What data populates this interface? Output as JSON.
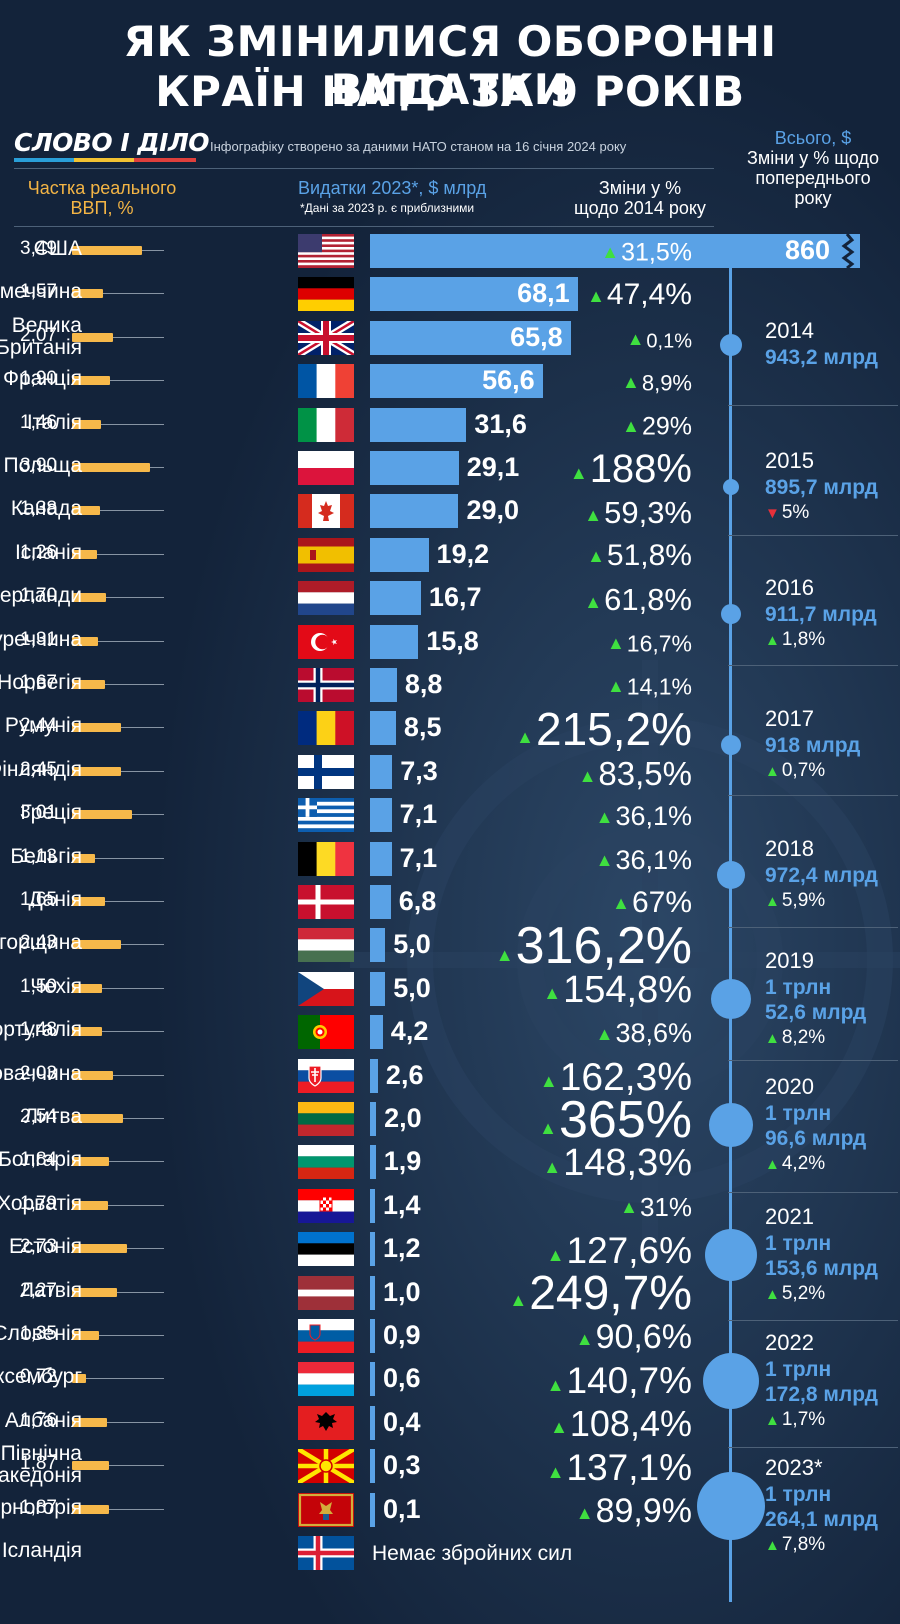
{
  "title_line1": "ЯК ЗМІНИЛИСЯ ОБОРОННІ ВИДАТКИ",
  "title_line2": "КРАЇН НАТО ЗА 9 РОКІВ",
  "logo": "СЛОВО І ДІЛО",
  "source": "Інфографіку створено за даними НАТО станом на 16 січня 2024 року",
  "headers": {
    "gdp_line1": "Частка реального",
    "gdp_line2": "ВВП, %",
    "spend": "Видатки 2023*, $ млрд",
    "spend_note": "*Дані за 2023 р. є приблизними",
    "change_line1": "Зміни у %",
    "change_line2": "щодо 2014 року",
    "total": "Всього, $",
    "total_change_line1": "Зміни у % щодо",
    "total_change_line2": "попереднього",
    "total_change_line3": "року"
  },
  "colors": {
    "accent_blue": "#5aa2e6",
    "gdp_bar": "#f6b84a",
    "up_arrow": "#3fe040",
    "down_arrow": "#e8303a",
    "background": "#13233a"
  },
  "chart_data": {
    "type": "bar",
    "title": "ЯК ЗМІНИЛИСЯ ОБОРОННІ ВИДАТКИ КРАЇН НАТО ЗА 9 РОКІВ",
    "categories": [
      "США",
      "Німеччина",
      "Велика Британія",
      "Франція",
      "Італія",
      "Польща",
      "Канада",
      "Іспанія",
      "Нідерланди",
      "Туреччина",
      "Норвегія",
      "Румунія",
      "Фінляндія",
      "Греція",
      "Бельгія",
      "Данія",
      "Угорщина",
      "Чехія",
      "Португалія",
      "Словаччина",
      "Литва",
      "Болгарія",
      "Хорватія",
      "Естонія",
      "Латвія",
      "Словенія",
      "Люксембург",
      "Албанія",
      "Північна Македонія",
      "Чорногорія",
      "Ісландія"
    ],
    "rows": [
      {
        "country": "США",
        "flag": "us-flag",
        "gdp": "3,49",
        "gdp_val": 3.49,
        "spend": "860",
        "spend_val": 860,
        "change": "31,5%",
        "size": 25,
        "up": true
      },
      {
        "country": "Німеччина",
        "flag": "germany-flag",
        "gdp": "1,57",
        "gdp_val": 1.57,
        "spend": "68,1",
        "spend_val": 68.1,
        "change": "47,4%",
        "size": 30,
        "up": true
      },
      {
        "country": "Велика Британія",
        "flag": "uk-flag",
        "gdp": "2,07",
        "gdp_val": 2.07,
        "spend": "65,8",
        "spend_val": 65.8,
        "change": "0,1%",
        "size": 20,
        "up": true
      },
      {
        "country": "Франція",
        "flag": "france-flag",
        "gdp": "1,90",
        "gdp_val": 1.9,
        "spend": "56,6",
        "spend_val": 56.6,
        "change": "8,9%",
        "size": 22,
        "up": true
      },
      {
        "country": "Італія",
        "flag": "italy-flag",
        "gdp": "1,46",
        "gdp_val": 1.46,
        "spend": "31,6",
        "spend_val": 31.6,
        "change": "29%",
        "size": 25,
        "up": true
      },
      {
        "country": "Польща",
        "flag": "poland-flag",
        "gdp": "3,90",
        "gdp_val": 3.9,
        "spend": "29,1",
        "spend_val": 29.1,
        "change": "188%",
        "size": 40,
        "up": true
      },
      {
        "country": "Канада",
        "flag": "canada-flag",
        "gdp": "1,38",
        "gdp_val": 1.38,
        "spend": "29,0",
        "spend_val": 29.0,
        "change": "59,3%",
        "size": 31,
        "up": true
      },
      {
        "country": "Іспанія",
        "flag": "spain-flag",
        "gdp": "1,26",
        "gdp_val": 1.26,
        "spend": "19,2",
        "spend_val": 19.2,
        "change": "51,8%",
        "size": 30,
        "up": true
      },
      {
        "country": "Нідерланди",
        "flag": "netherlands-flag",
        "gdp": "1,70",
        "gdp_val": 1.7,
        "spend": "16,7",
        "spend_val": 16.7,
        "change": "61,8%",
        "size": 31,
        "up": true
      },
      {
        "country": "Туреччина",
        "flag": "turkey-flag",
        "gdp": "1,31",
        "gdp_val": 1.31,
        "spend": "15,8",
        "spend_val": 15.8,
        "change": "16,7%",
        "size": 23,
        "up": true
      },
      {
        "country": "Норвегія",
        "flag": "norway-flag",
        "gdp": "1,67",
        "gdp_val": 1.67,
        "spend": "8,8",
        "spend_val": 8.8,
        "change": "14,1%",
        "size": 23,
        "up": true
      },
      {
        "country": "Румунія",
        "flag": "romania-flag",
        "gdp": "2,44",
        "gdp_val": 2.44,
        "spend": "8,5",
        "spend_val": 8.5,
        "change": "215,2%",
        "size": 46,
        "up": true
      },
      {
        "country": "Фінляндія",
        "flag": "finland-flag",
        "gdp": "2,45",
        "gdp_val": 2.45,
        "spend": "7,3",
        "spend_val": 7.3,
        "change": "83,5%",
        "size": 33,
        "up": true
      },
      {
        "country": "Греція",
        "flag": "greece-flag",
        "gdp": "3,01",
        "gdp_val": 3.01,
        "spend": "7,1",
        "spend_val": 7.1,
        "change": "36,1%",
        "size": 27,
        "up": true
      },
      {
        "country": "Бельгія",
        "flag": "belgium-flag",
        "gdp": "1,13",
        "gdp_val": 1.13,
        "spend": "7,1",
        "spend_val": 7.1,
        "change": "36,1%",
        "size": 27,
        "up": true
      },
      {
        "country": "Данія",
        "flag": "denmark-flag",
        "gdp": "1,65",
        "gdp_val": 1.65,
        "spend": "6,8",
        "spend_val": 6.8,
        "change": "67%",
        "size": 30,
        "up": true
      },
      {
        "country": "Угорщина",
        "flag": "hungary-flag",
        "gdp": "2,43",
        "gdp_val": 2.43,
        "spend": "5,0",
        "spend_val": 5.0,
        "change": "316,2%",
        "size": 52,
        "up": true
      },
      {
        "country": "Чехія",
        "flag": "czechia-flag",
        "gdp": "1,50",
        "gdp_val": 1.5,
        "spend": "5,0",
        "spend_val": 5.0,
        "change": "154,8%",
        "size": 38,
        "up": true
      },
      {
        "country": "Португалія",
        "flag": "portugal-flag",
        "gdp": "1,48",
        "gdp_val": 1.48,
        "spend": "4,2",
        "spend_val": 4.2,
        "change": "38,6%",
        "size": 27,
        "up": true
      },
      {
        "country": "Словаччина",
        "flag": "slovakia-flag",
        "gdp": "2,03",
        "gdp_val": 2.03,
        "spend": "2,6",
        "spend_val": 2.6,
        "change": "162,3%",
        "size": 39,
        "up": true
      },
      {
        "country": "Литва",
        "flag": "lithuania-flag",
        "gdp": "2,54",
        "gdp_val": 2.54,
        "spend": "2,0",
        "spend_val": 2.0,
        "change": "365%",
        "size": 52,
        "up": true
      },
      {
        "country": "Болгарія",
        "flag": "bulgaria-flag",
        "gdp": "1,84",
        "gdp_val": 1.84,
        "spend": "1,9",
        "spend_val": 1.9,
        "change": "148,3%",
        "size": 38,
        "up": true
      },
      {
        "country": "Хорватія",
        "flag": "croatia-flag",
        "gdp": "1,79",
        "gdp_val": 1.79,
        "spend": "1,4",
        "spend_val": 1.4,
        "change": "31%",
        "size": 26,
        "up": true
      },
      {
        "country": "Естонія",
        "flag": "estonia-flag",
        "gdp": "2,73",
        "gdp_val": 2.73,
        "spend": "1,2",
        "spend_val": 1.2,
        "change": "127,6%",
        "size": 37,
        "up": true
      },
      {
        "country": "Латвія",
        "flag": "latvia-flag",
        "gdp": "2,27",
        "gdp_val": 2.27,
        "spend": "1,0",
        "spend_val": 1.0,
        "change": "249,7%",
        "size": 48,
        "up": true
      },
      {
        "country": "Словенія",
        "flag": "slovenia-flag",
        "gdp": "1,35",
        "gdp_val": 1.35,
        "spend": "0,9",
        "spend_val": 0.9,
        "change": "90,6%",
        "size": 34,
        "up": true
      },
      {
        "country": "Люксембург",
        "flag": "luxembourg-flag",
        "gdp": "0,72",
        "gdp_val": 0.72,
        "spend": "0,6",
        "spend_val": 0.6,
        "change": "140,7%",
        "size": 37,
        "up": true
      },
      {
        "country": "Албанія",
        "flag": "albania-flag",
        "gdp": "1,76",
        "gdp_val": 1.76,
        "spend": "0,4",
        "spend_val": 0.4,
        "change": "108,4%",
        "size": 36,
        "up": true
      },
      {
        "country": "Північна Македонія",
        "flag": "north-macedonia-flag",
        "gdp": "1,87",
        "gdp_val": 1.87,
        "spend": "0,3",
        "spend_val": 0.3,
        "change": "137,1%",
        "size": 37,
        "up": true
      },
      {
        "country": "Чорногорія",
        "flag": "montenegro-flag",
        "gdp": "1,87",
        "gdp_val": 1.87,
        "spend": "0,1",
        "spend_val": 0.1,
        "change": "89,9%",
        "size": 34,
        "up": true
      },
      {
        "country": "Ісландія",
        "flag": "iceland-flag",
        "gdp": "",
        "gdp_val": null,
        "spend": "Немає збройних сил",
        "spend_val": null,
        "change": "",
        "size": 0,
        "up": true
      }
    ],
    "timeline": [
      {
        "year": "2014",
        "total": "943,2 млрд",
        "total_val": 943.2,
        "change": "",
        "up": true
      },
      {
        "year": "2015",
        "total": "895,7 млрд",
        "total_val": 895.7,
        "change": "5%",
        "up": false
      },
      {
        "year": "2016",
        "total": "911,7 млрд",
        "total_val": 911.7,
        "change": "1,8%",
        "up": true
      },
      {
        "year": "2017",
        "total": "918 млрд",
        "total_val": 918,
        "change": "0,7%",
        "up": true
      },
      {
        "year": "2018",
        "total": "972,4 млрд",
        "total_val": 972.4,
        "change": "5,9%",
        "up": true
      },
      {
        "year": "2019",
        "total": "1 трлн 52,6 млрд",
        "total_val": 1052.6,
        "change": "8,2%",
        "up": true
      },
      {
        "year": "2020",
        "total": "1 трлн 96,6 млрд",
        "total_val": 1096.6,
        "change": "4,2%",
        "up": true
      },
      {
        "year": "2021",
        "total": "1 трлн 153,6 млрд",
        "total_val": 1153.6,
        "change": "5,2%",
        "up": true
      },
      {
        "year": "2022",
        "total": "1 трлн 172,8 млрд",
        "total_val": 1172.8,
        "change": "1,7%",
        "up": true
      },
      {
        "year": "2023*",
        "total": "1 трлн 264,1 млрд",
        "total_val": 1264.1,
        "change": "7,8%",
        "up": true
      }
    ]
  }
}
